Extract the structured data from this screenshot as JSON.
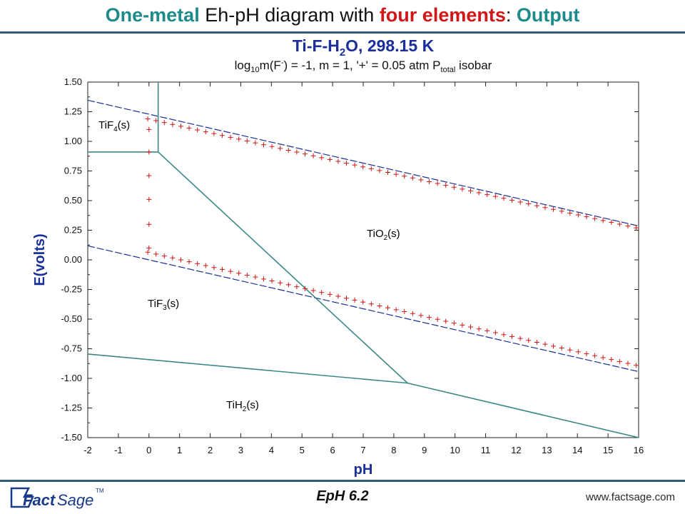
{
  "slide": {
    "title_part1": "One-metal",
    "title_part2": " Eh-pH diagram with ",
    "title_part3": "four elements",
    "title_part4": ": ",
    "title_part5": "Output",
    "version": "EpH   6.2",
    "url": "www.factsage.com",
    "logo_text_1": "Fact",
    "logo_text_2": "Sage",
    "logo_tm": "TM"
  },
  "colors": {
    "title_teal": "#1f8a8a",
    "title_red": "#d01616",
    "phase_boundary": "#3c8787",
    "water_line": "#1a2f9a",
    "water_marker": "#d01616",
    "axis_label": "#1a2f9a"
  },
  "chart_data": {
    "type": "line",
    "title": "Ti-F-H2O, 298.15 K",
    "subtitle": "log10m(F-) = -1, m = 1, '+' = 0.05 atm Ptotal isobar",
    "xlabel": "pH",
    "ylabel": "E(volts)",
    "xlim": [
      -2,
      16
    ],
    "ylim": [
      -1.5,
      1.5
    ],
    "xticks": [
      "-2",
      "-1",
      "0",
      "1",
      "2",
      "3",
      "4",
      "5",
      "6",
      "7",
      "8",
      "9",
      "10",
      "11",
      "12",
      "13",
      "14",
      "15",
      "16"
    ],
    "yticks": [
      "1.50",
      "1.25",
      "1.00",
      "0.75",
      "0.50",
      "0.25",
      "0.00",
      "-0.25",
      "-0.50",
      "-0.75",
      "-1.00",
      "-1.25",
      "-1.50"
    ],
    "grid": false,
    "regions": [
      {
        "label": "TiF4(s)",
        "x": -1.7,
        "y": 1.17
      },
      {
        "label": "TiO2(s)",
        "x": 7.4,
        "y": 0.11
      },
      {
        "label": "TiF3(s)",
        "x": 0.0,
        "y": -0.44
      },
      {
        "label": "TiH2(s)",
        "x": 2.5,
        "y": -1.36
      }
    ],
    "phase_boundaries": [
      {
        "x": [
          0.3,
          0.3
        ],
        "y": [
          1.5,
          0.91
        ]
      },
      {
        "x": [
          -2,
          0.3
        ],
        "y": [
          0.91,
          0.91
        ]
      },
      {
        "x": [
          0.3,
          8.45
        ],
        "y": [
          0.91,
          -1.04
        ]
      },
      {
        "x": [
          -2,
          8.45
        ],
        "y": [
          -0.795,
          -1.04
        ]
      },
      {
        "x": [
          8.45,
          16
        ],
        "y": [
          -1.04,
          -1.5
        ]
      }
    ],
    "water_lines": [
      {
        "name": "O2/H2O",
        "x": [
          -2,
          16
        ],
        "y": [
          1.347,
          0.286
        ]
      },
      {
        "name": "H+/H2",
        "x": [
          -2,
          16
        ],
        "y": [
          0.118,
          -0.943
        ]
      }
    ],
    "isobar_markers": {
      "upper": {
        "x_start": -0.04,
        "x_end": 15.92,
        "y_start": 1.19,
        "y_end": 0.27,
        "count": 60
      },
      "lower": {
        "x_start": -0.04,
        "x_end": 15.92,
        "y_start": 0.065,
        "y_end": -0.89,
        "count": 60
      },
      "vertical": {
        "x": 0.0,
        "y": [
          1.1,
          0.91,
          0.71,
          0.51,
          0.3,
          0.1
        ]
      }
    }
  }
}
